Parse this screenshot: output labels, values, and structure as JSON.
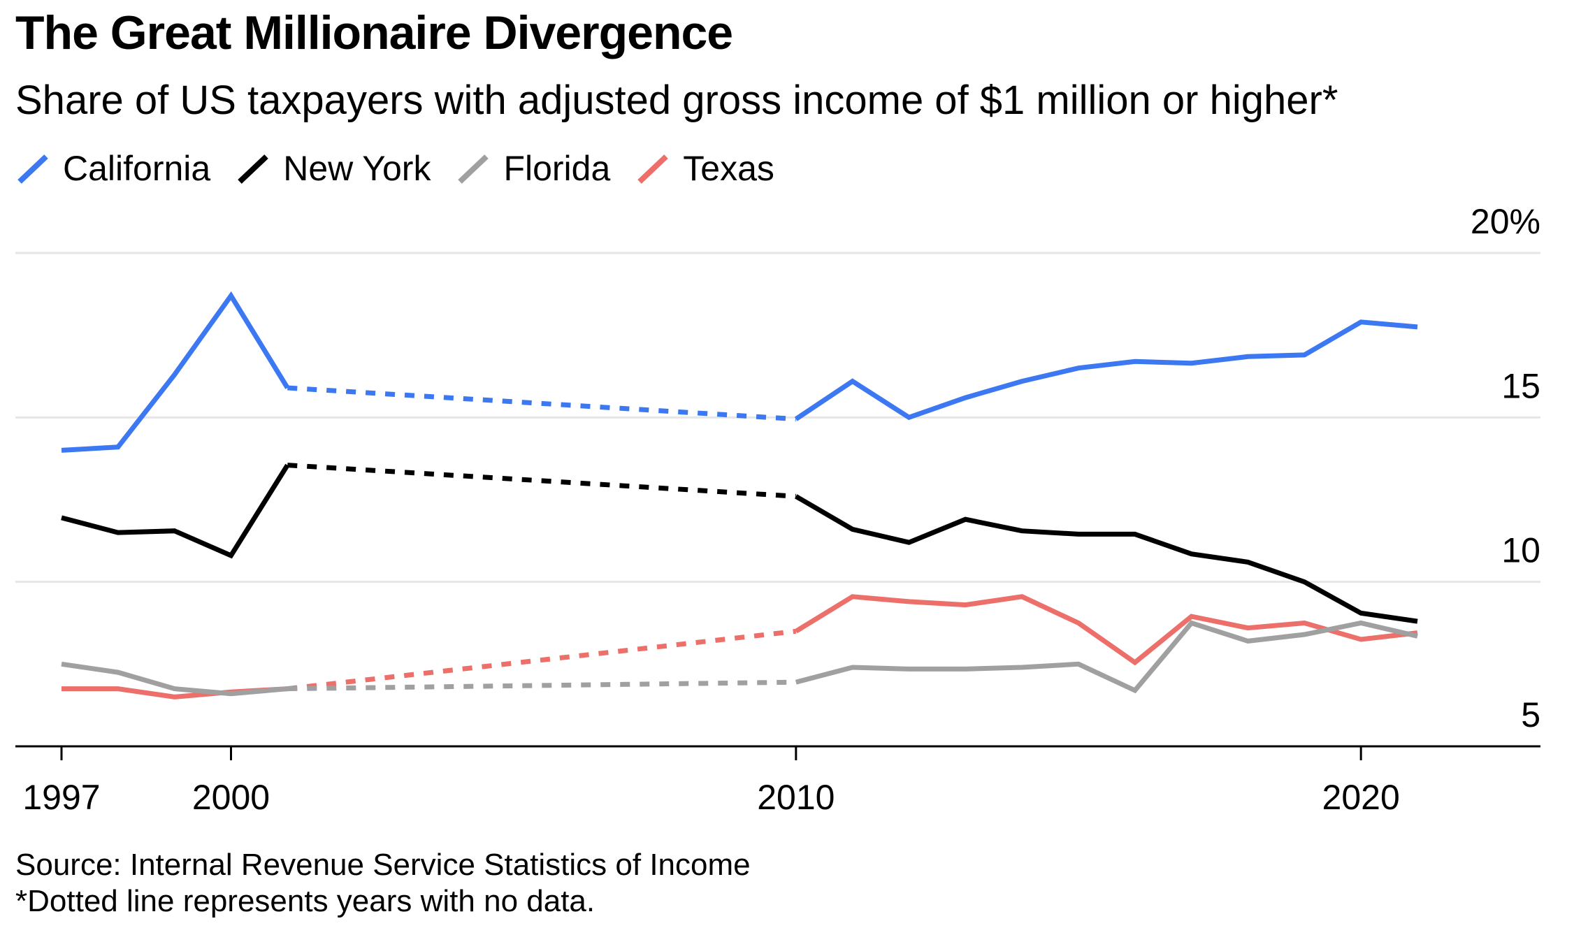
{
  "header": {
    "title": "The Great Millionaire Divergence",
    "subtitle": "Share of US taxpayers with adjusted gross income of $1 million or higher*"
  },
  "legend": [
    {
      "label": "California",
      "color": "#3b78f2"
    },
    {
      "label": "New York",
      "color": "#000000"
    },
    {
      "label": "Florida",
      "color": "#a0a0a0"
    },
    {
      "label": "Texas",
      "color": "#ec6f6a"
    }
  ],
  "footer": {
    "source": "Source: Internal Revenue Service Statistics of Income",
    "note": "*Dotted line represents years with no data."
  },
  "chart_data": {
    "type": "line",
    "ylim": [
      5,
      20
    ],
    "xlim": [
      1997,
      2022.5
    ],
    "y_ticks": [
      {
        "value": 20,
        "label": "20%"
      },
      {
        "value": 15,
        "label": "15"
      },
      {
        "value": 10,
        "label": "10"
      },
      {
        "value": 5,
        "label": "5"
      }
    ],
    "x_ticks": [
      {
        "value": 1997,
        "label": "1997"
      },
      {
        "value": 2000,
        "label": "2000"
      },
      {
        "value": 2010,
        "label": "2010"
      },
      {
        "value": 2020,
        "label": "2020"
      }
    ],
    "grid": true,
    "y_axis_position": "right",
    "legend_position": "top-left",
    "gap_years": [
      2001,
      2010
    ],
    "series": [
      {
        "name": "California",
        "color": "#3b78f2",
        "x": [
          1997,
          1998,
          1999,
          2000,
          2001,
          2010,
          2011,
          2012,
          2013,
          2014,
          2015,
          2016,
          2017,
          2018,
          2019,
          2020,
          2021
        ],
        "y": [
          14.0,
          14.1,
          16.3,
          18.7,
          15.9,
          14.95,
          16.1,
          15.0,
          15.6,
          16.1,
          16.5,
          16.7,
          16.65,
          16.85,
          16.9,
          17.9,
          17.75
        ]
      },
      {
        "name": "New York",
        "color": "#000000",
        "x": [
          1997,
          1998,
          1999,
          2000,
          2001,
          2010,
          2011,
          2012,
          2013,
          2014,
          2015,
          2016,
          2017,
          2018,
          2019,
          2020,
          2021
        ],
        "y": [
          11.95,
          11.5,
          11.55,
          10.8,
          13.55,
          12.6,
          11.6,
          11.2,
          11.9,
          11.55,
          11.45,
          11.45,
          10.85,
          10.6,
          10.0,
          9.05,
          8.8
        ]
      },
      {
        "name": "Florida",
        "color": "#a0a0a0",
        "x": [
          1997,
          1998,
          1999,
          2000,
          2001,
          2010,
          2011,
          2012,
          2013,
          2014,
          2015,
          2016,
          2017,
          2018,
          2019,
          2020,
          2021
        ],
        "y": [
          7.5,
          7.25,
          6.75,
          6.6,
          6.75,
          6.95,
          7.4,
          7.35,
          7.35,
          7.4,
          7.5,
          6.7,
          8.75,
          8.2,
          8.4,
          8.75,
          8.35
        ]
      },
      {
        "name": "Texas",
        "color": "#ec6f6a",
        "x": [
          1997,
          1998,
          1999,
          2000,
          2001,
          2010,
          2011,
          2012,
          2013,
          2014,
          2015,
          2016,
          2017,
          2018,
          2019,
          2020,
          2021
        ],
        "y": [
          6.75,
          6.75,
          6.5,
          6.65,
          6.75,
          8.5,
          9.55,
          9.4,
          9.3,
          9.55,
          8.75,
          7.55,
          8.95,
          8.6,
          8.75,
          8.25,
          8.45
        ]
      }
    ]
  }
}
